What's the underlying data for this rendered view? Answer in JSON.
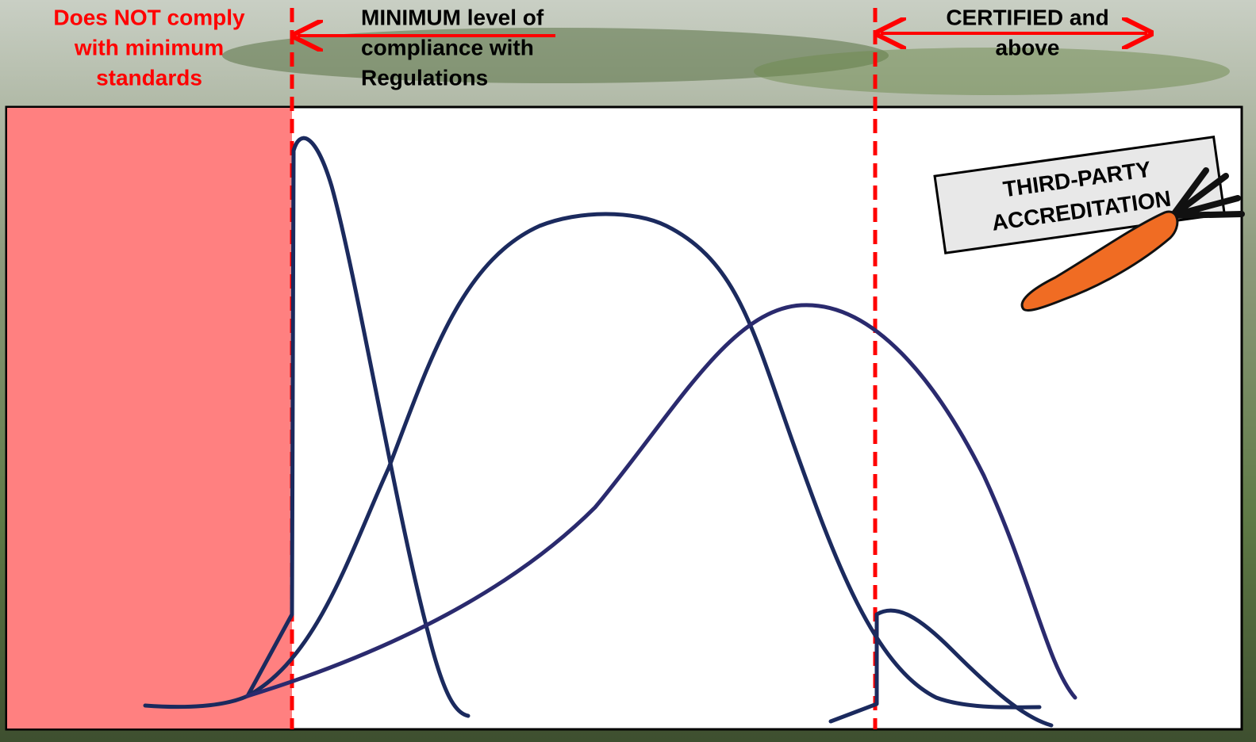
{
  "header": {
    "non_compliant": [
      "Does NOT comply",
      "with minimum",
      "standards"
    ],
    "minimum": [
      "MINIMUM level of",
      "compliance with",
      "Regulations"
    ],
    "certified": [
      "CERTIFIED and",
      "above"
    ]
  },
  "sign": [
    "THIRD-PARTY",
    "ACCREDITATION"
  ]
}
